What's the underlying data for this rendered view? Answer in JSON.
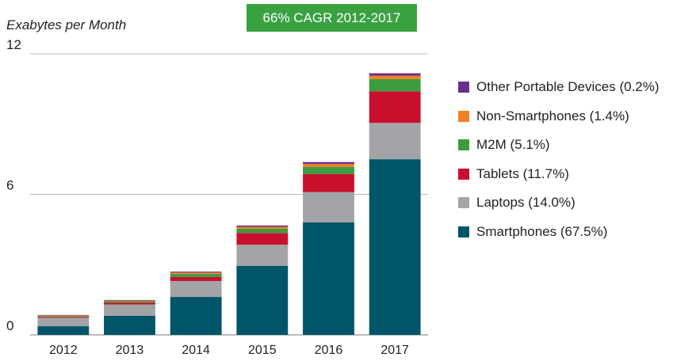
{
  "chart_data": {
    "type": "bar",
    "stacked": true,
    "ylabel": "Exabytes per Month",
    "ylim": [
      0,
      12
    ],
    "yticks": [
      0,
      6,
      12
    ],
    "grid": true,
    "legend_position": "right",
    "annotation": "66% CAGR 2012-2017",
    "categories": [
      "2012",
      "2013",
      "2014",
      "2015",
      "2016",
      "2017"
    ],
    "series": [
      {
        "name": "Smartphones (67.5%)",
        "color": "#005568",
        "values": [
          0.37,
          0.82,
          1.62,
          2.95,
          4.8,
          7.5
        ]
      },
      {
        "name": "Laptops (14.0%)",
        "color": "#a2a4a7",
        "values": [
          0.36,
          0.48,
          0.68,
          0.9,
          1.3,
          1.55
        ]
      },
      {
        "name": "Tablets (11.7%)",
        "color": "#c8102e",
        "values": [
          0.04,
          0.08,
          0.17,
          0.5,
          0.77,
          1.35
        ]
      },
      {
        "name": "M2M (5.1%)",
        "color": "#3b9d3d",
        "values": [
          0.03,
          0.06,
          0.13,
          0.18,
          0.3,
          0.52
        ]
      },
      {
        "name": "Non-Smartphones (1.4%)",
        "color": "#f08122",
        "values": [
          0.03,
          0.03,
          0.06,
          0.08,
          0.13,
          0.15
        ]
      },
      {
        "name": "Other Portable Devices (0.2%)",
        "color": "#6a2f8e",
        "values": [
          0.02,
          0.02,
          0.04,
          0.06,
          0.08,
          0.1
        ]
      }
    ]
  }
}
